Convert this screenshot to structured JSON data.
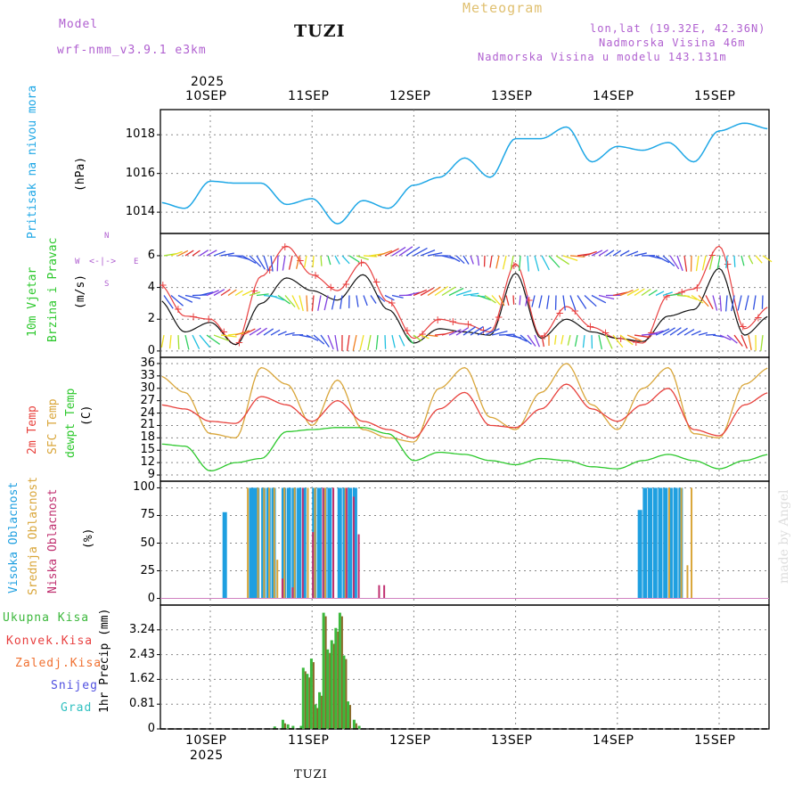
{
  "header": {
    "model_label": "Model",
    "model_name": "wrf-nmm_v3.9.1  e3km",
    "location": "TUZI",
    "meteogram": "Meteogram",
    "lonlat": "lon,lat (19.32E, 42.36N)",
    "elevation": "Nadmorska Visina 46m",
    "model_elevation": "Nadmorska Visina u modelu 143.131m",
    "footer_location": "TUZI",
    "watermark": "made by Angel",
    "year": "2025"
  },
  "colors": {
    "pressure": "#1ea7e6",
    "temp2m": "#e8413c",
    "sfc_temp": "#d9a63a",
    "dewpoint": "#2cc82c",
    "high_cloud": "#1e9fe0",
    "mid_cloud": "#d9a63a",
    "low_cloud": "#c03070",
    "total_precip": "#3cb83c",
    "conv_precip": "#e84040",
    "wind_speed": "#e84040",
    "gust": "#111111"
  },
  "dates": [
    "10SEP",
    "11SEP",
    "12SEP",
    "13SEP",
    "14SEP",
    "15SEP"
  ],
  "chart_data": [
    {
      "type": "line",
      "panel": "pressure",
      "ylabel_main": "Pritisak na nivou mora",
      "ylabel_unit": "(hPa)",
      "yticks": [
        "1014",
        "1016",
        "1018"
      ],
      "ylim": [
        1012.9,
        1019.3
      ],
      "x_days": [
        0,
        0.25,
        0.5,
        0.75,
        1,
        1.25,
        1.5,
        1.75,
        2,
        2.25,
        2.5,
        2.75,
        3,
        3.25,
        3.5,
        3.75,
        4,
        4.25,
        4.5,
        4.75,
        5,
        5.25,
        5.5,
        5.75,
        6
      ],
      "values": [
        1014.5,
        1014.2,
        1015.6,
        1015.5,
        1015.5,
        1014.4,
        1014.7,
        1013.4,
        1014.6,
        1014.2,
        1015.4,
        1015.8,
        1016.8,
        1015.8,
        1017.8,
        1017.8,
        1018.4,
        1016.6,
        1017.4,
        1017.2,
        1017.6,
        1016.6,
        1018.2,
        1018.6,
        1018.3
      ],
      "series_name": "Pritisak"
    },
    {
      "type": "line",
      "panel": "wind",
      "ylabel_main": "10m Vjetar",
      "ylabel_sub": "Brzina i Pravac",
      "ylabel_unit": "(m/s)",
      "compass": {
        "n": "N",
        "s": "S",
        "w": "W",
        "e": "E"
      },
      "yticks": [
        "0",
        "2",
        "4",
        "6"
      ],
      "ylim": [
        -0.4,
        7.4
      ],
      "x_days": [
        0,
        0.25,
        0.5,
        0.75,
        1,
        1.25,
        1.5,
        1.75,
        2,
        2.25,
        2.5,
        2.75,
        3,
        3.25,
        3.5,
        3.75,
        4,
        4.25,
        4.5,
        4.75,
        5,
        5.25,
        5.5,
        5.75,
        6
      ],
      "series": [
        {
          "name": "speed",
          "values": [
            4.2,
            2.2,
            2.0,
            0.4,
            4.7,
            6.6,
            4.8,
            3.8,
            5.6,
            3.1,
            0.8,
            2.0,
            1.7,
            1.2,
            5.5,
            0.9,
            2.8,
            1.5,
            0.8,
            0.5,
            3.5,
            3.9,
            6.6,
            1.4,
            2.8
          ]
        },
        {
          "name": "gust",
          "values": [
            3.2,
            1.2,
            1.8,
            0.4,
            3.0,
            4.6,
            3.8,
            3.2,
            4.8,
            2.6,
            0.5,
            1.4,
            1.2,
            1.0,
            4.9,
            0.8,
            2.0,
            1.2,
            0.8,
            0.6,
            2.2,
            2.6,
            5.2,
            1.0,
            2.2
          ]
        }
      ]
    },
    {
      "type": "line",
      "panel": "temperature",
      "ylabel_t2m": "2m Temp",
      "ylabel_sfc": "SFC Temp",
      "ylabel_dew": "dewpt Temp",
      "ylabel_unit": "(C)",
      "yticks": [
        "9",
        "12",
        "15",
        "18",
        "21",
        "24",
        "27",
        "30",
        "33",
        "36"
      ],
      "ylim": [
        7.5,
        37.5
      ],
      "x_days": [
        0,
        0.25,
        0.5,
        0.75,
        1,
        1.25,
        1.5,
        1.75,
        2,
        2.25,
        2.5,
        2.75,
        3,
        3.25,
        3.5,
        3.75,
        4,
        4.25,
        4.5,
        4.75,
        5,
        5.25,
        5.5,
        5.75,
        6
      ],
      "series": [
        {
          "name": "2m Temp",
          "values": [
            26,
            25,
            22,
            21.5,
            28,
            26,
            22,
            27,
            22,
            20,
            18,
            25,
            29,
            21,
            20.5,
            25,
            31,
            25,
            22,
            26,
            30,
            20,
            18.5,
            26,
            29
          ]
        },
        {
          "name": "SFC Temp",
          "values": [
            33,
            29,
            19,
            18,
            35,
            31,
            21,
            32,
            20,
            18,
            17,
            30,
            35,
            23,
            20,
            29,
            36,
            26,
            20,
            30,
            35,
            19,
            18,
            31,
            35
          ]
        },
        {
          "name": "dewpt Temp",
          "values": [
            16.5,
            16.0,
            10.0,
            12.0,
            13.0,
            19.5,
            20.0,
            20.5,
            20.5,
            19.0,
            12.5,
            14.5,
            14.0,
            12.5,
            11.5,
            13.0,
            12.5,
            11.0,
            10.5,
            12.5,
            14.0,
            12.5,
            10.5,
            12.5,
            14.0
          ]
        }
      ]
    },
    {
      "type": "bar",
      "panel": "clouds",
      "ylabel_high": "Visoka Oblacnost",
      "ylabel_mid": "Srednja Oblacnost",
      "ylabel_low": "Niska Oblacnost",
      "ylabel_unit": "(%)",
      "yticks": [
        "0",
        "25",
        "50",
        "75",
        "100"
      ],
      "ylim": [
        -6,
        106
      ],
      "series": [
        {
          "name": "Visoka Oblacnost",
          "x_days": [
            0.12,
            0.38,
            0.4,
            0.42,
            0.44,
            0.5,
            0.55,
            0.6,
            0.7,
            0.75,
            0.8,
            0.85,
            0.9,
            1.0,
            1.05,
            1.1,
            1.15,
            1.25,
            1.3,
            1.35,
            1.4,
            4.2,
            4.25,
            4.3,
            4.35,
            4.4,
            4.45,
            4.5,
            4.55,
            4.6
          ],
          "values": [
            78,
            100,
            100,
            100,
            100,
            100,
            100,
            100,
            100,
            100,
            100,
            100,
            100,
            100,
            100,
            100,
            100,
            100,
            100,
            100,
            100,
            80,
            100,
            100,
            100,
            100,
            100,
            100,
            100,
            100
          ]
        },
        {
          "name": "Srednja Oblacnost",
          "x_days": [
            0.36,
            0.46,
            0.52,
            0.57,
            0.62,
            0.65,
            0.72,
            0.82,
            0.95,
            1.02,
            1.12,
            1.2,
            1.32,
            4.5,
            4.62,
            4.68,
            4.72
          ],
          "values": [
            100,
            100,
            100,
            100,
            100,
            35,
            100,
            100,
            100,
            100,
            100,
            100,
            100,
            100,
            100,
            30,
            100
          ]
        },
        {
          "name": "Niska Oblacnost",
          "x_days": [
            0.7,
            0.8,
            0.9,
            1.0,
            1.1,
            1.2,
            1.33,
            1.4,
            1.45,
            1.65,
            1.7
          ],
          "values": [
            18,
            10,
            100,
            60,
            100,
            100,
            100,
            92,
            58,
            12,
            12
          ]
        }
      ]
    },
    {
      "type": "bar",
      "panel": "precip",
      "ylabel_unit": "1hr Precip (mm)",
      "legend": [
        "Ukupna Kisa",
        "Konvek.Kisa",
        "Zaledj.Kisa",
        "Snijeg",
        "Grad"
      ],
      "yticks": [
        "0",
        "0.81",
        "1.62",
        "2.43",
        "3.24"
      ],
      "ylim": [
        0,
        4.05
      ],
      "x_days": [
        0.62,
        0.7,
        0.75,
        0.8,
        0.88,
        0.9,
        0.94,
        0.98,
        1.02,
        1.06,
        1.1,
        1.14,
        1.18,
        1.22,
        1.26,
        1.3,
        1.34,
        1.4,
        1.45
      ],
      "values": [
        0.08,
        0.3,
        0.15,
        0.1,
        0.1,
        2.0,
        1.8,
        2.3,
        0.8,
        1.2,
        3.8,
        2.6,
        2.9,
        3.3,
        3.8,
        2.4,
        0.9,
        0.3,
        0.1
      ]
    }
  ]
}
